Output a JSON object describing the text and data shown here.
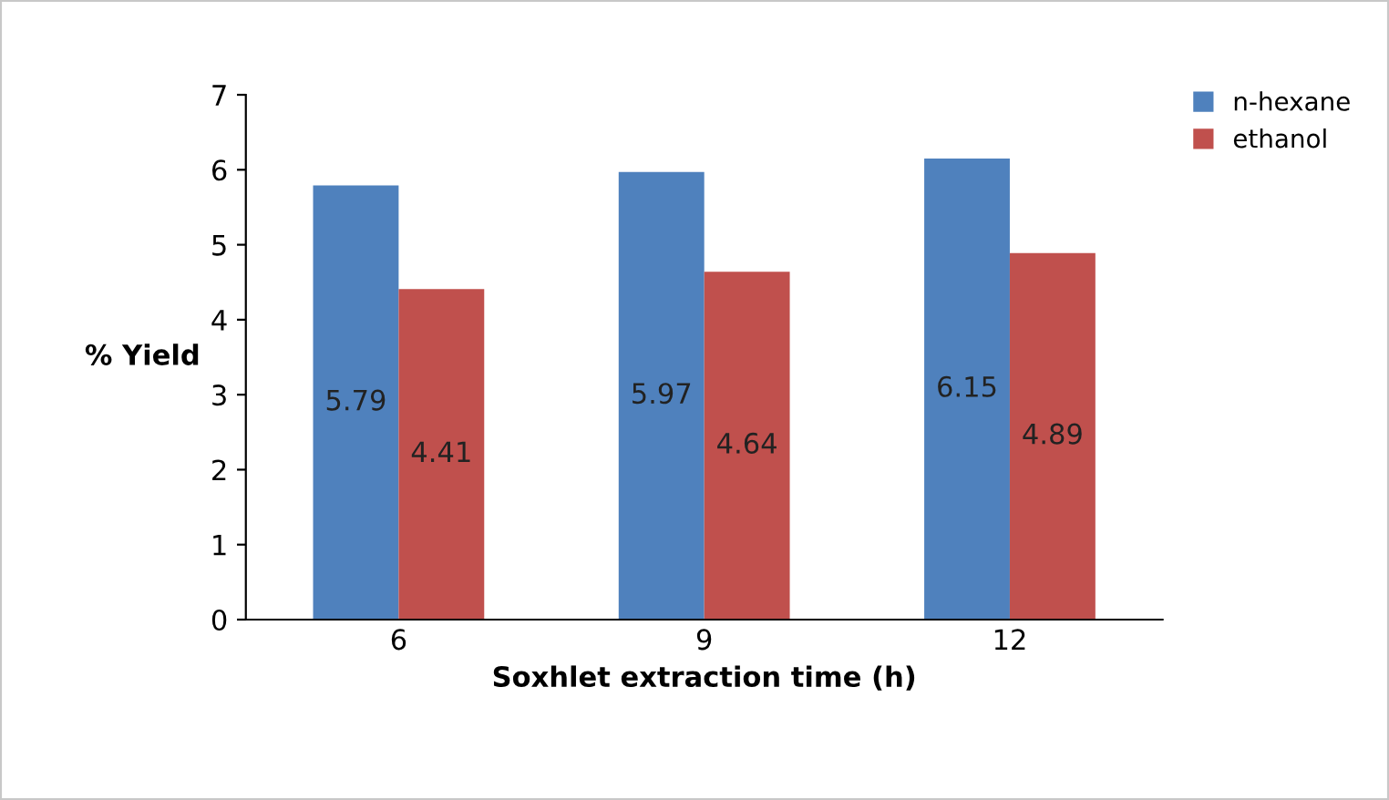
{
  "chart_data": {
    "type": "bar",
    "xlabel": "Soxhlet extraction time (h)",
    "ylabel": "% Yield",
    "categories": [
      "6",
      "9",
      "12"
    ],
    "series": [
      {
        "name": "n-hexane",
        "color": "#4f81bd",
        "values": [
          5.79,
          5.97,
          6.15
        ]
      },
      {
        "name": "ethanol",
        "color": "#c0504d",
        "values": [
          4.41,
          4.64,
          4.89
        ]
      }
    ],
    "ylim": [
      0,
      7
    ],
    "yticks": [
      0,
      1,
      2,
      3,
      4,
      5,
      6,
      7
    ],
    "grid": false,
    "legend": "top right",
    "data_labels": true
  }
}
